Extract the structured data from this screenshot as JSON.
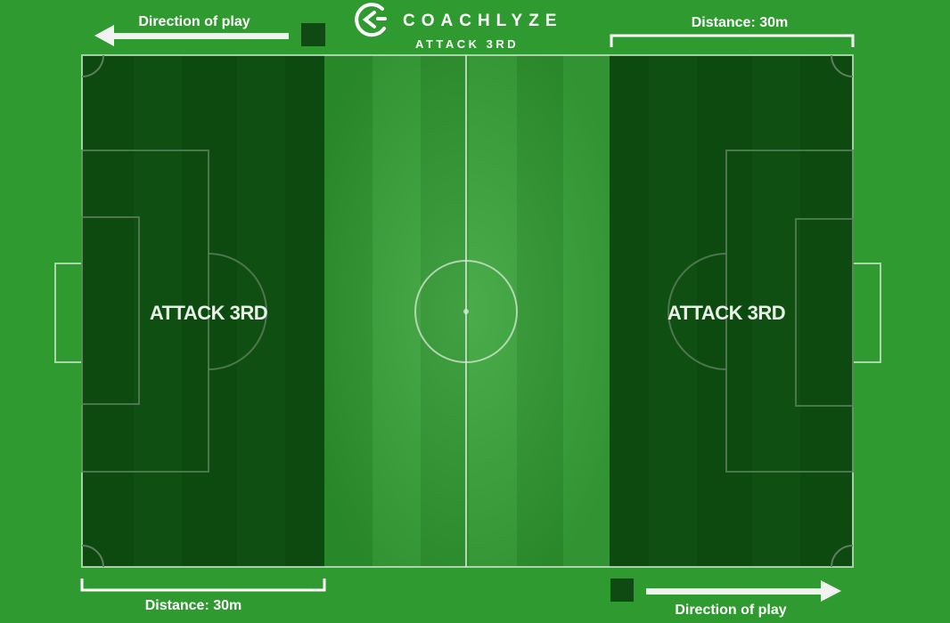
{
  "brand": {
    "name": "COACHLYZE",
    "subtitle": "ATTACK 3RD"
  },
  "top_left": {
    "direction_label": "Direction of play",
    "arrow_direction": "left"
  },
  "top_right": {
    "distance_label": "Distance: 30m"
  },
  "bottom_left": {
    "distance_label": "Distance: 30m"
  },
  "bottom_right": {
    "direction_label": "Direction of play",
    "arrow_direction": "right"
  },
  "zones": {
    "left_label": "ATTACK 3RD",
    "right_label": "ATTACK 3RD"
  },
  "colors": {
    "grass": "#2f9a2f",
    "stripe_light": "#36a336",
    "stripe_dark": "#2b8f2b",
    "zone_dark": "#0d4a10",
    "zone_dark_alt": "#0b420e",
    "marker": "#0f4a12",
    "lines": "#d8ead8"
  }
}
